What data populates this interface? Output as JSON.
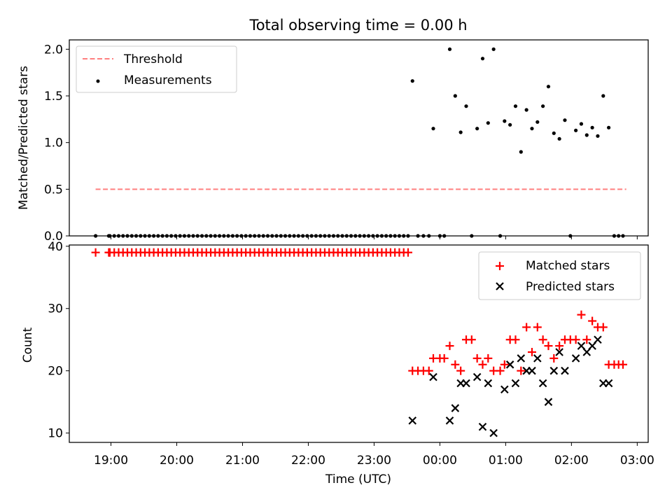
{
  "chart_data": [
    {
      "type": "scatter",
      "title": "Total observing time = 0.00 h",
      "xlabel": "",
      "ylabel": "Matched/Predicted stars",
      "xlim": [
        "18:22",
        "03:10"
      ],
      "ylim": [
        0,
        2.1
      ],
      "yticks": [
        "0.0",
        "0.5",
        "1.0",
        "1.5",
        "2.0"
      ],
      "legend_position": "top-left",
      "grid": false,
      "legend": {
        "threshold_label": "Threshold",
        "measurements_label": "Measurements"
      },
      "threshold": {
        "name": "Threshold",
        "value": 0.5,
        "x_start": "18:46",
        "x_end": "02:50",
        "style": "dashed",
        "color": "#ff7f7f"
      },
      "series": [
        {
          "name": "Measurements",
          "color": "#000000",
          "points": [
            [
              "18:46",
              0.0
            ],
            [
              "18:58",
              0.0
            ],
            [
              "18:59",
              0.0
            ],
            [
              "19:03",
              0.0
            ],
            [
              "19:07",
              0.0
            ],
            [
              "19:11",
              0.0
            ],
            [
              "19:15",
              0.0
            ],
            [
              "19:19",
              0.0
            ],
            [
              "19:23",
              0.0
            ],
            [
              "19:27",
              0.0
            ],
            [
              "19:31",
              0.0
            ],
            [
              "19:35",
              0.0
            ],
            [
              "19:39",
              0.0
            ],
            [
              "19:43",
              0.0
            ],
            [
              "19:47",
              0.0
            ],
            [
              "19:51",
              0.0
            ],
            [
              "19:55",
              0.0
            ],
            [
              "19:59",
              0.0
            ],
            [
              "20:03",
              0.0
            ],
            [
              "20:07",
              0.0
            ],
            [
              "20:11",
              0.0
            ],
            [
              "20:15",
              0.0
            ],
            [
              "20:19",
              0.0
            ],
            [
              "20:23",
              0.0
            ],
            [
              "20:27",
              0.0
            ],
            [
              "20:31",
              0.0
            ],
            [
              "20:35",
              0.0
            ],
            [
              "20:39",
              0.0
            ],
            [
              "20:43",
              0.0
            ],
            [
              "20:47",
              0.0
            ],
            [
              "20:51",
              0.0
            ],
            [
              "20:55",
              0.0
            ],
            [
              "20:59",
              0.0
            ],
            [
              "21:03",
              0.0
            ],
            [
              "21:07",
              0.0
            ],
            [
              "21:11",
              0.0
            ],
            [
              "21:15",
              0.0
            ],
            [
              "21:19",
              0.0
            ],
            [
              "21:23",
              0.0
            ],
            [
              "21:27",
              0.0
            ],
            [
              "21:31",
              0.0
            ],
            [
              "21:35",
              0.0
            ],
            [
              "21:39",
              0.0
            ],
            [
              "21:43",
              0.0
            ],
            [
              "21:47",
              0.0
            ],
            [
              "21:51",
              0.0
            ],
            [
              "21:55",
              0.0
            ],
            [
              "21:59",
              0.0
            ],
            [
              "22:03",
              0.0
            ],
            [
              "22:07",
              0.0
            ],
            [
              "22:11",
              0.0
            ],
            [
              "22:15",
              0.0
            ],
            [
              "22:19",
              0.0
            ],
            [
              "22:23",
              0.0
            ],
            [
              "22:27",
              0.0
            ],
            [
              "22:31",
              0.0
            ],
            [
              "22:35",
              0.0
            ],
            [
              "22:39",
              0.0
            ],
            [
              "22:43",
              0.0
            ],
            [
              "22:47",
              0.0
            ],
            [
              "22:51",
              0.0
            ],
            [
              "22:55",
              0.0
            ],
            [
              "22:59",
              0.0
            ],
            [
              "23:03",
              0.0
            ],
            [
              "23:07",
              0.0
            ],
            [
              "23:11",
              0.0
            ],
            [
              "23:15",
              0.0
            ],
            [
              "23:19",
              0.0
            ],
            [
              "23:23",
              0.0
            ],
            [
              "23:27",
              0.0
            ],
            [
              "23:31",
              0.0
            ],
            [
              "23:35",
              1.66
            ],
            [
              "23:40",
              0.0
            ],
            [
              "23:45",
              0.0
            ],
            [
              "23:50",
              0.0
            ],
            [
              "23:54",
              1.15
            ],
            [
              "00:00",
              0.0
            ],
            [
              "00:04",
              0.0
            ],
            [
              "00:09",
              2.0
            ],
            [
              "00:14",
              1.5
            ],
            [
              "00:19",
              1.11
            ],
            [
              "00:24",
              1.39
            ],
            [
              "00:29",
              0.0
            ],
            [
              "00:34",
              1.15
            ],
            [
              "00:39",
              1.9
            ],
            [
              "00:44",
              1.21
            ],
            [
              "00:49",
              2.0
            ],
            [
              "00:55",
              0.0
            ],
            [
              "00:59",
              1.23
            ],
            [
              "01:04",
              1.19
            ],
            [
              "01:09",
              1.39
            ],
            [
              "01:14",
              0.9
            ],
            [
              "01:19",
              1.35
            ],
            [
              "01:24",
              1.15
            ],
            [
              "01:29",
              1.22
            ],
            [
              "01:34",
              1.39
            ],
            [
              "01:39",
              1.6
            ],
            [
              "01:44",
              1.1
            ],
            [
              "01:49",
              1.04
            ],
            [
              "01:54",
              1.24
            ],
            [
              "01:59",
              0.0
            ],
            [
              "02:04",
              1.13
            ],
            [
              "02:09",
              1.2
            ],
            [
              "02:14",
              1.08
            ],
            [
              "02:19",
              1.16
            ],
            [
              "02:24",
              1.07
            ],
            [
              "02:29",
              1.5
            ],
            [
              "02:34",
              1.16
            ],
            [
              "02:39",
              0.0
            ],
            [
              "02:43",
              0.0
            ],
            [
              "02:47",
              0.0
            ]
          ]
        }
      ]
    },
    {
      "type": "scatter",
      "title": "",
      "xlabel": "Time (UTC)",
      "ylabel": "Count",
      "xlim": [
        "18:22",
        "03:10"
      ],
      "ylim": [
        8.5,
        40.2
      ],
      "yticks": [
        "10",
        "20",
        "30",
        "40"
      ],
      "xticks": [
        "19:00",
        "20:00",
        "21:00",
        "22:00",
        "23:00",
        "00:00",
        "01:00",
        "02:00",
        "03:00"
      ],
      "legend_position": "top-right",
      "grid": false,
      "legend": {
        "matched_label": "Matched stars",
        "predicted_label": "Predicted stars"
      },
      "series": [
        {
          "name": "Matched stars",
          "marker": "plus",
          "color": "#ff0000",
          "points": [
            [
              "18:46",
              39
            ],
            [
              "18:58",
              39
            ],
            [
              "18:59",
              39
            ],
            [
              "19:03",
              39
            ],
            [
              "19:07",
              39
            ],
            [
              "19:11",
              39
            ],
            [
              "19:15",
              39
            ],
            [
              "19:19",
              39
            ],
            [
              "19:23",
              39
            ],
            [
              "19:27",
              39
            ],
            [
              "19:31",
              39
            ],
            [
              "19:35",
              39
            ],
            [
              "19:39",
              39
            ],
            [
              "19:43",
              39
            ],
            [
              "19:47",
              39
            ],
            [
              "19:51",
              39
            ],
            [
              "19:55",
              39
            ],
            [
              "19:59",
              39
            ],
            [
              "20:03",
              39
            ],
            [
              "20:07",
              39
            ],
            [
              "20:11",
              39
            ],
            [
              "20:15",
              39
            ],
            [
              "20:19",
              39
            ],
            [
              "20:23",
              39
            ],
            [
              "20:27",
              39
            ],
            [
              "20:31",
              39
            ],
            [
              "20:35",
              39
            ],
            [
              "20:39",
              39
            ],
            [
              "20:43",
              39
            ],
            [
              "20:47",
              39
            ],
            [
              "20:51",
              39
            ],
            [
              "20:55",
              39
            ],
            [
              "20:59",
              39
            ],
            [
              "21:03",
              39
            ],
            [
              "21:07",
              39
            ],
            [
              "21:11",
              39
            ],
            [
              "21:15",
              39
            ],
            [
              "21:19",
              39
            ],
            [
              "21:23",
              39
            ],
            [
              "21:27",
              39
            ],
            [
              "21:31",
              39
            ],
            [
              "21:35",
              39
            ],
            [
              "21:39",
              39
            ],
            [
              "21:43",
              39
            ],
            [
              "21:47",
              39
            ],
            [
              "21:51",
              39
            ],
            [
              "21:55",
              39
            ],
            [
              "21:59",
              39
            ],
            [
              "22:03",
              39
            ],
            [
              "22:07",
              39
            ],
            [
              "22:11",
              39
            ],
            [
              "22:15",
              39
            ],
            [
              "22:19",
              39
            ],
            [
              "22:23",
              39
            ],
            [
              "22:27",
              39
            ],
            [
              "22:31",
              39
            ],
            [
              "22:35",
              39
            ],
            [
              "22:39",
              39
            ],
            [
              "22:43",
              39
            ],
            [
              "22:47",
              39
            ],
            [
              "22:51",
              39
            ],
            [
              "22:55",
              39
            ],
            [
              "22:59",
              39
            ],
            [
              "23:03",
              39
            ],
            [
              "23:07",
              39
            ],
            [
              "23:11",
              39
            ],
            [
              "23:15",
              39
            ],
            [
              "23:19",
              39
            ],
            [
              "23:23",
              39
            ],
            [
              "23:27",
              39
            ],
            [
              "23:31",
              39
            ],
            [
              "23:35",
              20
            ],
            [
              "23:40",
              20
            ],
            [
              "23:45",
              20
            ],
            [
              "23:50",
              20
            ],
            [
              "23:54",
              22
            ],
            [
              "00:00",
              22
            ],
            [
              "00:04",
              22
            ],
            [
              "00:09",
              24
            ],
            [
              "00:14",
              21
            ],
            [
              "00:19",
              20
            ],
            [
              "00:24",
              25
            ],
            [
              "00:29",
              25
            ],
            [
              "00:34",
              22
            ],
            [
              "00:39",
              21
            ],
            [
              "00:44",
              22
            ],
            [
              "00:49",
              20
            ],
            [
              "00:55",
              20
            ],
            [
              "00:59",
              21
            ],
            [
              "01:04",
              25
            ],
            [
              "01:09",
              25
            ],
            [
              "01:14",
              20
            ],
            [
              "01:19",
              27
            ],
            [
              "01:24",
              23
            ],
            [
              "01:29",
              27
            ],
            [
              "01:34",
              25
            ],
            [
              "01:39",
              24
            ],
            [
              "01:44",
              22
            ],
            [
              "01:49",
              24
            ],
            [
              "01:54",
              25
            ],
            [
              "01:59",
              25
            ],
            [
              "02:04",
              25
            ],
            [
              "02:09",
              29
            ],
            [
              "02:14",
              25
            ],
            [
              "02:19",
              28
            ],
            [
              "02:24",
              27
            ],
            [
              "02:29",
              27
            ],
            [
              "02:34",
              21
            ],
            [
              "02:39",
              21
            ],
            [
              "02:43",
              21
            ],
            [
              "02:47",
              21
            ]
          ]
        },
        {
          "name": "Predicted stars",
          "marker": "x",
          "color": "#000000",
          "points": [
            [
              "23:35",
              12
            ],
            [
              "23:54",
              19
            ],
            [
              "00:09",
              12
            ],
            [
              "00:14",
              14
            ],
            [
              "00:19",
              18
            ],
            [
              "00:24",
              18
            ],
            [
              "00:34",
              19
            ],
            [
              "00:39",
              11
            ],
            [
              "00:44",
              18
            ],
            [
              "00:49",
              10
            ],
            [
              "00:59",
              17
            ],
            [
              "01:04",
              21
            ],
            [
              "01:09",
              18
            ],
            [
              "01:14",
              22
            ],
            [
              "01:19",
              20
            ],
            [
              "01:24",
              20
            ],
            [
              "01:29",
              22
            ],
            [
              "01:34",
              18
            ],
            [
              "01:39",
              15
            ],
            [
              "01:44",
              20
            ],
            [
              "01:49",
              23
            ],
            [
              "01:54",
              20
            ],
            [
              "02:04",
              22
            ],
            [
              "02:09",
              24
            ],
            [
              "02:14",
              23
            ],
            [
              "02:19",
              24
            ],
            [
              "02:24",
              25
            ],
            [
              "02:29",
              18
            ],
            [
              "02:34",
              18
            ]
          ]
        }
      ]
    }
  ]
}
